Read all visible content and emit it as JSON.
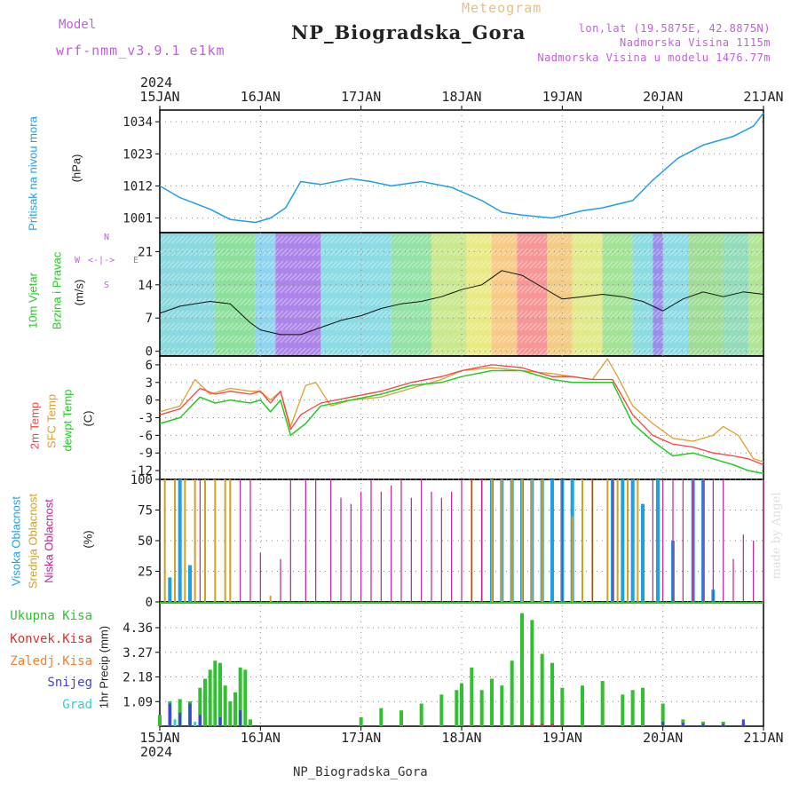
{
  "header": {
    "title": "NP_Biogradska_Gora",
    "meteogram": "Meteogram",
    "model_label": "Model",
    "model_value": "wrf-nmm_v3.9.1 e1km",
    "coords": "lon,lat (19.5875E, 42.8875N)",
    "elevation": "Nadmorska Visina 1115m",
    "model_elevation": "Nadmorska Visina u modelu 1476.77m",
    "footer": "NP_Biogradska_Gora",
    "watermark": "made by Angel"
  },
  "time_axis": {
    "year": "2024",
    "ticks": [
      "15JAN",
      "16JAN",
      "17JAN",
      "18JAN",
      "19JAN",
      "20JAN",
      "21JAN"
    ]
  },
  "colors": {
    "pressure": "#1ea0e6",
    "wind_label": "#22cc22",
    "temp": "#ff4040",
    "sfc": "#e0a030",
    "dew": "#22cc22",
    "high_cloud": "#1ea0e6",
    "mid_cloud": "#d4a020",
    "low_cloud": "#c0209a",
    "precip_total": "#30c030",
    "precip_conv": "#e03030",
    "precip_ice": "#f08030",
    "snow": "#4040e0",
    "hail": "#30d0d0"
  },
  "labels": {
    "pressure": [
      "Pritisak na nivou mora",
      "(hPa)"
    ],
    "wind": [
      "10m Vjetar",
      "Brzina i Pravac",
      "(m/s)"
    ],
    "temp": [
      "2m Temp",
      "SFC Temp",
      "dewpt Temp",
      "(C)"
    ],
    "clouds": [
      "Visoka Oblacnost",
      "Srednja Oblacnost",
      "Niska Oblacnost",
      "(%)"
    ],
    "precip_ylabel": "1hr Precip (mm)",
    "precip_legend": [
      "Ukupna Kisa",
      "Konvek.Kisa",
      "Zaledj.Kisa",
      "Snijeg",
      "Grad"
    ],
    "compass": [
      "W",
      "E",
      "N",
      "S"
    ]
  },
  "chart_data": [
    {
      "type": "line",
      "panel": "pressure",
      "title": "",
      "ylabel": "(hPa)",
      "ylim": [
        996,
        1038
      ],
      "yticks": [
        1001,
        1012,
        1023,
        1034
      ],
      "series": [
        {
          "name": "Pritisak na nivou mora",
          "x_days": [
            0,
            0.2,
            0.5,
            0.7,
            0.95,
            1.1,
            1.25,
            1.4,
            1.6,
            1.9,
            2.1,
            2.3,
            2.6,
            2.9,
            3.2,
            3.4,
            3.6,
            3.9,
            4.2,
            4.4,
            4.7,
            4.9,
            5.15,
            5.4,
            5.7,
            5.9,
            6.0
          ],
          "values": [
            1012,
            1008,
            1004,
            1000.5,
            999.5,
            1001,
            1004.5,
            1013.5,
            1012.5,
            1014.5,
            1013.5,
            1012,
            1013.5,
            1011.5,
            1007,
            1003,
            1002,
            1001,
            1003.5,
            1004.5,
            1007,
            1014,
            1021.5,
            1026,
            1029,
            1032.5,
            1037
          ]
        }
      ]
    },
    {
      "type": "line",
      "panel": "wind",
      "title": "",
      "ylabel": "(m/s)",
      "ylim": [
        -1,
        25
      ],
      "yticks": [
        0,
        7,
        14,
        21
      ],
      "series": [
        {
          "name": "Brzina",
          "x_days": [
            0,
            0.2,
            0.5,
            0.7,
            0.9,
            1.0,
            1.2,
            1.4,
            1.6,
            1.8,
            2.0,
            2.2,
            2.4,
            2.6,
            2.8,
            3.0,
            3.2,
            3.4,
            3.6,
            3.8,
            4.0,
            4.2,
            4.4,
            4.6,
            4.8,
            5.0,
            5.2,
            5.4,
            5.6,
            5.8,
            6.0
          ],
          "values": [
            8,
            9.5,
            10.5,
            10,
            6,
            4.5,
            3.5,
            3.5,
            5,
            6.5,
            7.5,
            9,
            10,
            10.5,
            11.5,
            13,
            14,
            17,
            16,
            13.5,
            11,
            11.5,
            12,
            11.5,
            10.5,
            8.5,
            11,
            12.5,
            11.5,
            12.5,
            12
          ]
        }
      ]
    },
    {
      "type": "line",
      "panel": "temperature",
      "title": "",
      "ylabel": "(C)",
      "ylim": [
        -13.5,
        7.5
      ],
      "yticks": [
        -12,
        -9,
        -6,
        -3,
        0,
        3,
        6
      ],
      "series": [
        {
          "name": "2m Temp",
          "x_days": [
            0,
            0.2,
            0.4,
            0.55,
            0.7,
            0.9,
            1.0,
            1.1,
            1.2,
            1.3,
            1.4,
            1.6,
            1.9,
            2.2,
            2.5,
            2.8,
            3.0,
            3.3,
            3.6,
            3.9,
            4.1,
            4.3,
            4.5,
            4.7,
            4.9,
            5.1,
            5.3,
            5.5,
            5.7,
            5.85,
            6.0
          ],
          "values": [
            -2.5,
            -1.5,
            2,
            1,
            1.5,
            1,
            1.5,
            -0.5,
            1.5,
            -5,
            -2.5,
            -0.5,
            0.5,
            1.5,
            3,
            4,
            5,
            6,
            5.5,
            4,
            4,
            3.5,
            3.5,
            -2.5,
            -6,
            -7.5,
            -8,
            -9,
            -9.5,
            -10,
            -11
          ]
        },
        {
          "name": "SFC Temp",
          "x_days": [
            0,
            0.2,
            0.35,
            0.5,
            0.7,
            0.9,
            1.0,
            1.1,
            1.2,
            1.3,
            1.45,
            1.55,
            1.7,
            1.9,
            2.2,
            2.5,
            2.8,
            3.0,
            3.3,
            3.6,
            3.9,
            4.1,
            4.3,
            4.45,
            4.55,
            4.7,
            4.9,
            5.1,
            5.3,
            5.5,
            5.6,
            5.75,
            5.9,
            6.0
          ],
          "values": [
            -2,
            -1,
            3.5,
            1,
            2,
            1.5,
            1.5,
            0,
            1.5,
            -4.5,
            2.5,
            3,
            -1,
            0,
            0.5,
            2,
            3.5,
            5,
            5.5,
            5,
            4.5,
            4,
            3.5,
            7,
            4,
            -1,
            -4,
            -6.5,
            -7,
            -6,
            -4.5,
            -6,
            -10,
            -10.5
          ]
        },
        {
          "name": "dewpt Temp",
          "x_days": [
            0,
            0.2,
            0.4,
            0.55,
            0.7,
            0.9,
            1.0,
            1.1,
            1.2,
            1.3,
            1.45,
            1.6,
            1.9,
            2.2,
            2.5,
            2.8,
            3.0,
            3.3,
            3.6,
            3.9,
            4.1,
            4.3,
            4.5,
            4.7,
            4.9,
            5.1,
            5.3,
            5.5,
            5.7,
            5.85,
            6.0
          ],
          "values": [
            -4,
            -3,
            0.5,
            -0.5,
            0,
            -0.5,
            0,
            -2,
            0,
            -6,
            -4,
            -1,
            0,
            1,
            2.5,
            3,
            4,
            5,
            5,
            3.5,
            3,
            3,
            3,
            -4,
            -7,
            -9.5,
            -9,
            -10,
            -11,
            -12,
            -12.5
          ]
        }
      ]
    },
    {
      "type": "bar",
      "panel": "clouds",
      "title": "",
      "ylabel": "(%)",
      "ylim": [
        0,
        100
      ],
      "yticks": [
        0,
        25,
        50,
        75,
        100
      ],
      "series": [
        {
          "name": "Visoka Oblacnost",
          "x_days": [
            0.1,
            0.2,
            0.3,
            3.3,
            3.4,
            3.5,
            3.6,
            3.7,
            3.8,
            3.9,
            4.0,
            4.1,
            4.5,
            4.6,
            4.7,
            4.8,
            4.95,
            5.1,
            5.3,
            5.4,
            5.5
          ],
          "values": [
            20,
            100,
            30,
            100,
            100,
            100,
            100,
            100,
            100,
            100,
            100,
            100,
            100,
            100,
            100,
            80,
            100,
            50,
            100,
            100,
            10
          ]
        },
        {
          "name": "Srednja Oblacnost",
          "x_days": [
            0.05,
            0.15,
            0.25,
            0.35,
            0.45,
            0.55,
            0.65,
            0.7,
            1.1,
            3.1,
            3.2,
            3.3,
            3.4,
            3.5,
            3.6,
            3.7,
            3.8,
            4.1,
            4.2,
            4.3,
            4.45,
            4.55,
            4.65,
            4.75
          ],
          "values": [
            100,
            100,
            100,
            100,
            100,
            100,
            100,
            100,
            5,
            100,
            100,
            100,
            100,
            100,
            100,
            100,
            100,
            70,
            100,
            100,
            100,
            100,
            100,
            100
          ]
        },
        {
          "name": "Niska Oblacnost",
          "x_days": [
            0.4,
            0.8,
            0.9,
            1.0,
            1.2,
            1.3,
            1.45,
            1.55,
            1.7,
            1.8,
            1.9,
            2.0,
            2.1,
            2.2,
            2.3,
            2.4,
            2.5,
            2.6,
            2.7,
            2.8,
            2.9,
            3.0,
            3.1,
            3.2,
            4.0,
            4.3,
            4.5,
            4.9,
            5.0,
            5.1,
            5.2,
            5.3,
            5.4,
            5.5,
            5.6,
            5.7,
            5.8,
            5.9,
            6.0
          ],
          "values": [
            100,
            100,
            100,
            40,
            35,
            100,
            100,
            100,
            100,
            85,
            80,
            90,
            100,
            90,
            95,
            100,
            85,
            100,
            90,
            85,
            90,
            100,
            100,
            100,
            100,
            100,
            100,
            100,
            100,
            100,
            100,
            100,
            100,
            100,
            100,
            35,
            55,
            50,
            100
          ]
        }
      ]
    },
    {
      "type": "bar",
      "panel": "precip",
      "title": "",
      "ylabel": "1hr Precip (mm)",
      "ylim": [
        0,
        5.5
      ],
      "yticks": [
        1.09,
        2.18,
        3.27,
        4.36
      ],
      "series": [
        {
          "name": "Ukupna Kisa",
          "x_days": [
            0.0,
            0.1,
            0.2,
            0.3,
            0.4,
            0.45,
            0.5,
            0.55,
            0.6,
            0.65,
            0.7,
            0.75,
            0.8,
            0.85,
            0.9,
            2.0,
            2.2,
            2.4,
            2.6,
            2.8,
            2.95,
            3.0,
            3.1,
            3.2,
            3.3,
            3.4,
            3.5,
            3.6,
            3.7,
            3.8,
            3.9,
            4.0,
            4.2,
            4.4,
            4.6,
            4.7,
            4.8,
            5.0,
            5.2,
            5.4,
            5.6,
            5.8
          ],
          "values": [
            0.5,
            1.1,
            1.2,
            1.1,
            1.7,
            2.1,
            2.5,
            2.9,
            2.8,
            1.8,
            1.1,
            1.5,
            2.6,
            2.5,
            0.3,
            0.4,
            0.8,
            0.7,
            1.0,
            1.4,
            1.6,
            1.9,
            2.6,
            1.6,
            2.1,
            1.8,
            2.9,
            5.0,
            4.7,
            3.2,
            2.8,
            1.7,
            1.8,
            2.0,
            1.4,
            1.6,
            1.7,
            1.0,
            0.3,
            0.2,
            0.2,
            0.1
          ]
        },
        {
          "name": "Konvek.Kisa",
          "x_days": [
            3.6,
            3.7,
            3.8,
            3.9,
            4.0
          ],
          "values": [
            0.05,
            0.1,
            0.1,
            0.1,
            0.05
          ]
        },
        {
          "name": "Snijeg",
          "x_days": [
            0.1,
            0.2,
            0.3,
            0.4,
            0.6,
            0.8,
            5.0,
            5.2,
            5.4,
            5.6,
            5.8
          ],
          "values": [
            1.0,
            0.6,
            1.0,
            0.5,
            0.4,
            0.7,
            0.2,
            0.15,
            0.1,
            0.1,
            0.3
          ]
        },
        {
          "name": "Grad",
          "x_days": [
            0.15,
            0.35
          ],
          "values": [
            0.3,
            0.2
          ]
        }
      ]
    }
  ]
}
